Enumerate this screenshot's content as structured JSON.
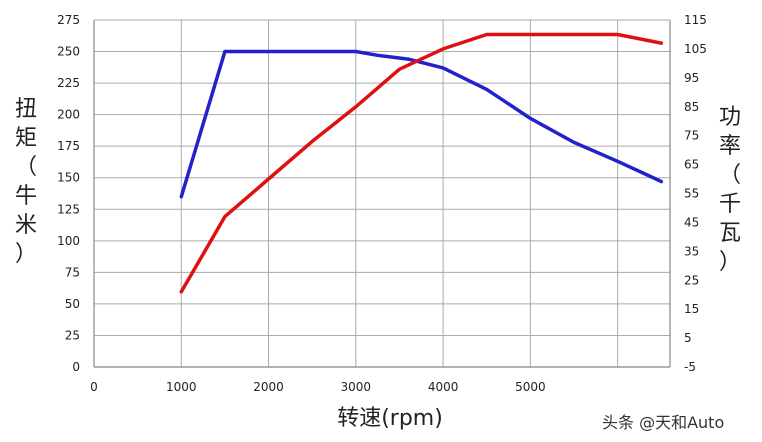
{
  "chart_data": {
    "type": "line",
    "xlabel": "转速(rpm)",
    "ylabel_left_chars": [
      "扭",
      "矩",
      "（",
      "牛",
      "米",
      "）"
    ],
    "ylabel_right_chars": [
      "功",
      "率",
      "（",
      "千",
      "瓦",
      "）"
    ],
    "xlim": [
      0,
      6600
    ],
    "ylim_left": [
      0,
      275
    ],
    "ylim_right": [
      -5,
      115
    ],
    "x_ticks": [
      {
        "value": 0,
        "label": "0"
      },
      {
        "value": 1000,
        "label": "1000"
      },
      {
        "value": 2000,
        "label": "2000"
      },
      {
        "value": 3000,
        "label": "3000"
      },
      {
        "value": 4000,
        "label": "4000"
      },
      {
        "value": 5000,
        "label": "5000"
      },
      {
        "value": 6000,
        "label": ""
      },
      {
        "value": 6600,
        "label": ""
      }
    ],
    "y_left_ticks": [
      "0",
      "25",
      "50",
      "75",
      "100",
      "125",
      "150",
      "175",
      "200",
      "225",
      "250",
      "275"
    ],
    "y_right_ticks": [
      "-5",
      "5",
      "15",
      "25",
      "35",
      "45",
      "55",
      "65",
      "75",
      "85",
      "95",
      "105",
      "115"
    ],
    "grid": true,
    "series": [
      {
        "axis": "left",
        "color": "#2222cc",
        "x": [
          1000,
          1500,
          2000,
          2500,
          3000,
          3250,
          3600,
          4000,
          4500,
          5000,
          5500,
          6000,
          6500
        ],
        "y": [
          135,
          250,
          250,
          250,
          250,
          247,
          244,
          237,
          220,
          197,
          178,
          163,
          147
        ]
      },
      {
        "axis": "right",
        "color": "#dd1111",
        "x": [
          1000,
          1500,
          2000,
          2500,
          3000,
          3500,
          4000,
          4500,
          5000,
          5500,
          6000,
          6500
        ],
        "y": [
          21,
          47,
          60,
          73,
          85,
          98,
          105,
          110,
          110,
          110,
          110,
          107
        ]
      }
    ]
  },
  "watermark": "头条 @天和Auto"
}
